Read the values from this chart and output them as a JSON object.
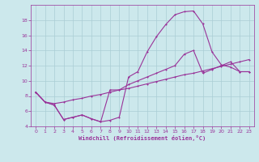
{
  "background_color": "#cce8ec",
  "grid_color": "#aacdd4",
  "line_color": "#993399",
  "xlabel": "Windchill (Refroidissement éolien,°C)",
  "xlim": [
    -0.5,
    23.5
  ],
  "ylim": [
    4,
    20
  ],
  "xticks": [
    0,
    1,
    2,
    3,
    4,
    5,
    6,
    7,
    8,
    9,
    10,
    11,
    12,
    13,
    14,
    15,
    16,
    17,
    18,
    19,
    20,
    21,
    22,
    23
  ],
  "yticks": [
    4,
    6,
    8,
    10,
    12,
    14,
    16,
    18
  ],
  "curve1_x": [
    0,
    1,
    2,
    3,
    4,
    5,
    6,
    7,
    8,
    9,
    10,
    11,
    12,
    13,
    14,
    15,
    16,
    17,
    18,
    19,
    20,
    21,
    22,
    23
  ],
  "curve1_y": [
    8.5,
    7.2,
    6.8,
    4.9,
    5.2,
    5.5,
    5.0,
    4.6,
    4.8,
    5.2,
    10.5,
    11.2,
    13.8,
    15.8,
    17.4,
    18.7,
    19.1,
    19.2,
    17.5,
    13.8,
    12.1,
    11.8,
    11.2,
    11.2
  ],
  "curve2_x": [
    0,
    1,
    2,
    3,
    4,
    5,
    6,
    7,
    8,
    9,
    10,
    11,
    12,
    13,
    14,
    15,
    16,
    17,
    18,
    19,
    20,
    21,
    22,
    23
  ],
  "curve2_y": [
    8.5,
    7.2,
    7.0,
    7.2,
    7.5,
    7.7,
    8.0,
    8.2,
    8.5,
    8.8,
    9.0,
    9.3,
    9.6,
    9.9,
    10.2,
    10.5,
    10.8,
    11.0,
    11.3,
    11.6,
    11.9,
    12.2,
    12.5,
    12.8
  ],
  "curve3_x": [
    0,
    1,
    2,
    3,
    4,
    5,
    6,
    7,
    8,
    9,
    10,
    11,
    12,
    13,
    14,
    15,
    16,
    17,
    18,
    19,
    20,
    21,
    22,
    23
  ],
  "curve3_y": [
    8.5,
    7.2,
    6.8,
    4.9,
    5.2,
    5.5,
    5.0,
    4.6,
    8.8,
    8.8,
    9.5,
    10.0,
    10.5,
    11.0,
    11.5,
    12.0,
    13.5,
    14.0,
    11.0,
    11.5,
    12.0,
    12.5,
    11.2,
    11.2
  ]
}
